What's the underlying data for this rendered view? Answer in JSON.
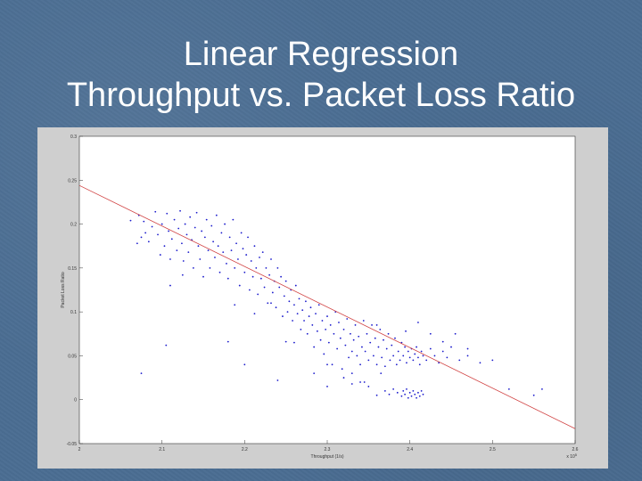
{
  "slide": {
    "title_line1": "Linear Regression",
    "title_line2": "Throughput vs. Packet Loss Ratio"
  },
  "colors": {
    "background": "#4a6d92",
    "points": "#1a1acc",
    "regression_line": "#d04040"
  },
  "chart_data": {
    "type": "scatter",
    "title": "",
    "xlabel": "Throughput (1/s)",
    "ylabel": "Packet Loss Ratio",
    "x_multiplier_label": "x 10",
    "x_multiplier_exponent": "5",
    "xlim": [
      2.0,
      2.6
    ],
    "ylim": [
      -0.05,
      0.3
    ],
    "xticks": [
      "2",
      "2.1",
      "2.2",
      "2.3",
      "2.4",
      "2.5",
      "2.6"
    ],
    "yticks": [
      "-0.05",
      "0",
      "0.05",
      "0.1",
      "0.15",
      "0.2",
      "0.25",
      "0.3"
    ],
    "grid": false,
    "regression_line": {
      "x": [
        2.0,
        2.6
      ],
      "y": [
        0.244,
        -0.033
      ]
    },
    "series": [
      {
        "marker": "point",
        "points": [
          [
            2.062,
            0.204
          ],
          [
            2.07,
            0.178
          ],
          [
            2.072,
            0.21
          ],
          [
            2.075,
            0.185
          ],
          [
            2.078,
            0.203
          ],
          [
            2.08,
            0.19
          ],
          [
            2.084,
            0.18
          ],
          [
            2.088,
            0.197
          ],
          [
            2.092,
            0.214
          ],
          [
            2.095,
            0.188
          ],
          [
            2.098,
            0.165
          ],
          [
            2.1,
            0.2
          ],
          [
            2.103,
            0.175
          ],
          [
            2.106,
            0.212
          ],
          [
            2.108,
            0.192
          ],
          [
            2.11,
            0.16
          ],
          [
            2.112,
            0.183
          ],
          [
            2.115,
            0.205
          ],
          [
            2.118,
            0.17
          ],
          [
            2.12,
            0.195
          ],
          [
            2.122,
            0.215
          ],
          [
            2.124,
            0.178
          ],
          [
            2.126,
            0.158
          ],
          [
            2.128,
            0.2
          ],
          [
            2.13,
            0.188
          ],
          [
            2.132,
            0.168
          ],
          [
            2.134,
            0.208
          ],
          [
            2.136,
            0.182
          ],
          [
            2.138,
            0.15
          ],
          [
            2.14,
            0.196
          ],
          [
            2.142,
            0.213
          ],
          [
            2.144,
            0.175
          ],
          [
            2.146,
            0.16
          ],
          [
            2.148,
            0.192
          ],
          [
            2.15,
            0.14
          ],
          [
            2.152,
            0.185
          ],
          [
            2.154,
            0.205
          ],
          [
            2.156,
            0.17
          ],
          [
            2.158,
            0.15
          ],
          [
            2.16,
            0.198
          ],
          [
            2.162,
            0.18
          ],
          [
            2.164,
            0.162
          ],
          [
            2.166,
            0.21
          ],
          [
            2.168,
            0.175
          ],
          [
            2.17,
            0.145
          ],
          [
            2.172,
            0.19
          ],
          [
            2.174,
            0.168
          ],
          [
            2.176,
            0.2
          ],
          [
            2.178,
            0.155
          ],
          [
            2.18,
            0.138
          ],
          [
            2.182,
            0.185
          ],
          [
            2.184,
            0.17
          ],
          [
            2.186,
            0.205
          ],
          [
            2.188,
            0.15
          ],
          [
            2.19,
            0.178
          ],
          [
            2.192,
            0.16
          ],
          [
            2.194,
            0.13
          ],
          [
            2.196,
            0.19
          ],
          [
            2.198,
            0.172
          ],
          [
            2.2,
            0.145
          ],
          [
            2.202,
            0.165
          ],
          [
            2.204,
            0.185
          ],
          [
            2.206,
            0.125
          ],
          [
            2.208,
            0.158
          ],
          [
            2.21,
            0.14
          ],
          [
            2.212,
            0.175
          ],
          [
            2.214,
            0.15
          ],
          [
            2.216,
            0.12
          ],
          [
            2.218,
            0.162
          ],
          [
            2.22,
            0.138
          ],
          [
            2.222,
            0.168
          ],
          [
            2.224,
            0.128
          ],
          [
            2.226,
            0.15
          ],
          [
            2.228,
            0.11
          ],
          [
            2.23,
            0.142
          ],
          [
            2.232,
            0.16
          ],
          [
            2.234,
            0.122
          ],
          [
            2.236,
            0.135
          ],
          [
            2.238,
            0.105
          ],
          [
            2.24,
            0.15
          ],
          [
            2.242,
            0.128
          ],
          [
            2.244,
            0.14
          ],
          [
            2.246,
            0.095
          ],
          [
            2.248,
            0.118
          ],
          [
            2.25,
            0.135
          ],
          [
            2.252,
            0.1
          ],
          [
            2.254,
            0.112
          ],
          [
            2.256,
            0.125
          ],
          [
            2.258,
            0.09
          ],
          [
            2.26,
            0.108
          ],
          [
            2.262,
            0.13
          ],
          [
            2.264,
            0.098
          ],
          [
            2.266,
            0.115
          ],
          [
            2.268,
            0.08
          ],
          [
            2.27,
            0.102
          ],
          [
            2.272,
            0.09
          ],
          [
            2.274,
            0.112
          ],
          [
            2.276,
            0.075
          ],
          [
            2.278,
            0.095
          ],
          [
            2.28,
            0.105
          ],
          [
            2.282,
            0.085
          ],
          [
            2.284,
            0.06
          ],
          [
            2.286,
            0.098
          ],
          [
            2.288,
            0.078
          ],
          [
            2.29,
            0.108
          ],
          [
            2.292,
            0.068
          ],
          [
            2.294,
            0.09
          ],
          [
            2.296,
            0.052
          ],
          [
            2.298,
            0.08
          ],
          [
            2.3,
            0.095
          ],
          [
            2.302,
            0.065
          ],
          [
            2.304,
            0.085
          ],
          [
            2.306,
            0.04
          ],
          [
            2.308,
            0.075
          ],
          [
            2.31,
            0.1
          ],
          [
            2.312,
            0.058
          ],
          [
            2.314,
            0.088
          ],
          [
            2.316,
            0.07
          ],
          [
            2.318,
            0.035
          ],
          [
            2.32,
            0.08
          ],
          [
            2.322,
            0.062
          ],
          [
            2.324,
            0.092
          ],
          [
            2.326,
            0.048
          ],
          [
            2.328,
            0.075
          ],
          [
            2.33,
            0.03
          ],
          [
            2.332,
            0.068
          ],
          [
            2.334,
            0.085
          ],
          [
            2.336,
            0.05
          ],
          [
            2.338,
            0.072
          ],
          [
            2.34,
            0.04
          ],
          [
            2.342,
            0.06
          ],
          [
            2.344,
            0.09
          ],
          [
            2.346,
            0.055
          ],
          [
            2.348,
            0.075
          ],
          [
            2.35,
            0.045
          ],
          [
            2.352,
            0.065
          ],
          [
            2.354,
            0.085
          ],
          [
            2.356,
            0.05
          ],
          [
            2.358,
            0.07
          ],
          [
            2.36,
            0.04
          ],
          [
            2.362,
            0.06
          ],
          [
            2.364,
            0.08
          ],
          [
            2.366,
            0.048
          ],
          [
            2.368,
            0.068
          ],
          [
            2.37,
            0.038
          ],
          [
            2.372,
            0.058
          ],
          [
            2.374,
            0.075
          ],
          [
            2.376,
            0.045
          ],
          [
            2.378,
            0.062
          ],
          [
            2.38,
            0.05
          ],
          [
            2.382,
            0.07
          ],
          [
            2.384,
            0.04
          ],
          [
            2.386,
            0.055
          ],
          [
            2.388,
            0.045
          ],
          [
            2.39,
            0.065
          ],
          [
            2.392,
            0.05
          ],
          [
            2.394,
            0.06
          ],
          [
            2.396,
            0.042
          ],
          [
            2.398,
            0.055
          ],
          [
            2.4,
            0.048
          ],
          [
            2.402,
            0.058
          ],
          [
            2.404,
            0.045
          ],
          [
            2.406,
            0.052
          ],
          [
            2.408,
            0.06
          ],
          [
            2.41,
            0.048
          ],
          [
            2.412,
            0.04
          ],
          [
            2.414,
            0.055
          ],
          [
            2.416,
            0.05
          ],
          [
            2.42,
            0.045
          ],
          [
            2.425,
            0.058
          ],
          [
            2.43,
            0.05
          ],
          [
            2.435,
            0.042
          ],
          [
            2.44,
            0.055
          ],
          [
            2.445,
            0.048
          ],
          [
            2.45,
            0.06
          ],
          [
            2.46,
            0.045
          ],
          [
            2.47,
            0.05
          ],
          [
            2.485,
            0.042
          ],
          [
            2.5,
            0.045
          ],
          [
            2.37,
            0.01
          ],
          [
            2.375,
            0.006
          ],
          [
            2.38,
            0.012
          ],
          [
            2.385,
            0.008
          ],
          [
            2.39,
            0.004
          ],
          [
            2.392,
            0.01
          ],
          [
            2.394,
            0.006
          ],
          [
            2.396,
            0.012
          ],
          [
            2.398,
            0.002
          ],
          [
            2.4,
            0.008
          ],
          [
            2.402,
            0.004
          ],
          [
            2.404,
            0.01
          ],
          [
            2.406,
            0.006
          ],
          [
            2.408,
            0.002
          ],
          [
            2.41,
            0.008
          ],
          [
            2.412,
            0.004
          ],
          [
            2.414,
            0.01
          ],
          [
            2.416,
            0.006
          ],
          [
            2.35,
            0.015
          ],
          [
            2.34,
            0.02
          ],
          [
            2.33,
            0.018
          ],
          [
            2.36,
            0.005
          ],
          [
            2.52,
            0.012
          ],
          [
            2.55,
            0.005
          ],
          [
            2.56,
            0.012
          ],
          [
            2.075,
            0.03
          ],
          [
            2.105,
            0.062
          ],
          [
            2.18,
            0.066
          ],
          [
            2.188,
            0.108
          ],
          [
            2.2,
            0.04
          ],
          [
            2.212,
            0.098
          ],
          [
            2.24,
            0.022
          ],
          [
            2.25,
            0.066
          ],
          [
            2.3,
            0.015
          ],
          [
            2.32,
            0.025
          ],
          [
            2.36,
            0.085
          ],
          [
            2.395,
            0.078
          ],
          [
            2.41,
            0.088
          ],
          [
            2.425,
            0.075
          ],
          [
            2.44,
            0.066
          ],
          [
            2.455,
            0.075
          ],
          [
            2.47,
            0.058
          ],
          [
            2.11,
            0.13
          ],
          [
            2.125,
            0.142
          ],
          [
            2.232,
            0.11
          ],
          [
            2.26,
            0.065
          ],
          [
            2.284,
            0.03
          ],
          [
            2.3,
            0.04
          ],
          [
            2.33,
            0.055
          ],
          [
            2.345,
            0.02
          ],
          [
            2.365,
            0.03
          ]
        ]
      }
    ]
  }
}
